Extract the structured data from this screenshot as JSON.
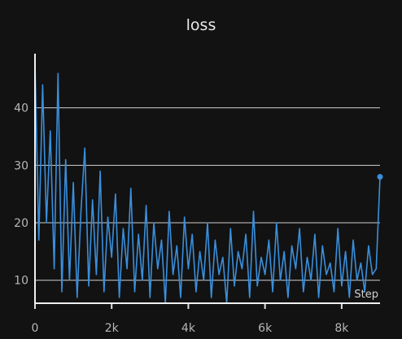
{
  "chart_data": {
    "type": "line",
    "title": "loss",
    "xlabel": "Step",
    "ylabel": "",
    "xlim": [
      0,
      9000
    ],
    "ylim": [
      6,
      50
    ],
    "x_ticks": [
      0,
      2000,
      4000,
      6000,
      8000
    ],
    "x_tick_labels": [
      "0",
      "2k",
      "4k",
      "6k",
      "8k"
    ],
    "y_ticks": [
      10,
      20,
      30,
      40
    ],
    "y_tick_labels": [
      "10",
      "20",
      "30",
      "40"
    ],
    "grid": "horizontal",
    "series": [
      {
        "color": "#3a8fdc",
        "x": [
          0,
          100,
          200,
          300,
          400,
          500,
          600,
          700,
          800,
          900,
          1000,
          1100,
          1200,
          1300,
          1400,
          1500,
          1600,
          1700,
          1800,
          1900,
          2000,
          2100,
          2200,
          2300,
          2400,
          2500,
          2600,
          2700,
          2800,
          2900,
          3000,
          3100,
          3200,
          3300,
          3400,
          3500,
          3600,
          3700,
          3800,
          3900,
          4000,
          4100,
          4200,
          4300,
          4400,
          4500,
          4600,
          4700,
          4800,
          4900,
          5000,
          5100,
          5200,
          5300,
          5400,
          5500,
          5600,
          5700,
          5800,
          5900,
          6000,
          6100,
          6200,
          6300,
          6400,
          6500,
          6600,
          6700,
          6800,
          6900,
          7000,
          7100,
          7200,
          7300,
          7400,
          7500,
          7600,
          7700,
          7800,
          7900,
          8000,
          8100,
          8200,
          8300,
          8400,
          8500,
          8600,
          8700,
          8800,
          8900,
          9000
        ],
        "y": [
          48,
          17,
          44,
          20,
          36,
          12,
          46,
          8,
          31,
          10,
          27,
          7,
          22,
          33,
          9,
          24,
          11,
          29,
          8,
          21,
          14,
          25,
          7,
          19,
          12,
          26,
          8,
          18,
          10,
          23,
          7,
          20,
          12,
          17,
          6,
          22,
          11,
          16,
          7,
          21,
          12,
          18,
          8,
          15,
          10,
          20,
          7,
          17,
          11,
          14,
          6,
          19,
          9,
          15,
          12,
          18,
          7,
          22,
          9,
          14,
          11,
          17,
          8,
          20,
          10,
          15,
          7,
          16,
          12,
          19,
          8,
          14,
          10,
          18,
          7,
          16,
          11,
          13,
          8,
          19,
          9,
          15,
          7,
          17,
          10,
          13,
          8,
          16,
          11,
          12,
          28
        ]
      }
    ],
    "last_point": {
      "x": 9000,
      "y": 28
    }
  }
}
